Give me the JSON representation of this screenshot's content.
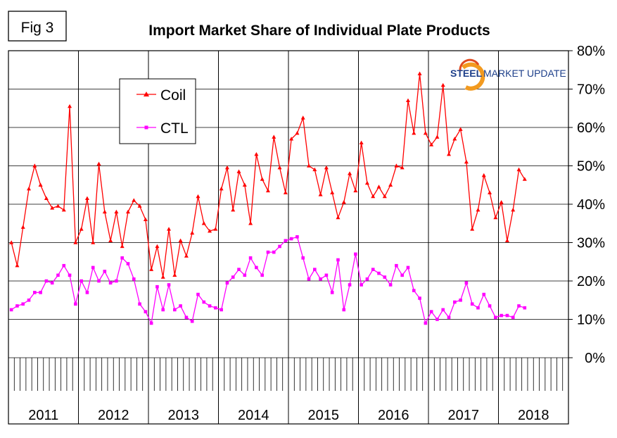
{
  "fig_label": "Fig 3",
  "logo": {
    "text_steel": "STEEL",
    "text_rest": "MARKET UPDATE"
  },
  "chart_data": {
    "type": "line",
    "title": "Import Market Share of Individual Plate Products",
    "xlabel": "",
    "ylabel": "",
    "ylim": [
      0,
      80
    ],
    "ytick_values": [
      0,
      10,
      20,
      30,
      40,
      50,
      60,
      70,
      80
    ],
    "ytick_labels": [
      "0%",
      "10%",
      "20%",
      "30%",
      "40%",
      "50%",
      "60%",
      "70%",
      "80%"
    ],
    "year_labels": [
      "2011",
      "2012",
      "2013",
      "2014",
      "2015",
      "2016",
      "2017",
      "2018"
    ],
    "months_per_year": 12,
    "grid": true,
    "legend_position": "top-left",
    "series": [
      {
        "name": "Coil",
        "color": "#ff0000",
        "marker": "triangle",
        "values": [
          30,
          24,
          34,
          44,
          50,
          45,
          41.5,
          39,
          39.5,
          38.5,
          65.5,
          30,
          33.5,
          41.5,
          30,
          50.5,
          38,
          30.5,
          38,
          29,
          38,
          41,
          39.5,
          36,
          23,
          29,
          21,
          33.5,
          21.5,
          30.5,
          26.5,
          32.5,
          42,
          35,
          33,
          33.5,
          44,
          49.5,
          38.5,
          48.5,
          45,
          35,
          53,
          46.5,
          43.5,
          57.5,
          49.5,
          43,
          57,
          58.5,
          62.5,
          50,
          49,
          42.5,
          49.5,
          43,
          36.5,
          40.5,
          48,
          43.5,
          56,
          45.5,
          42,
          44.5,
          42,
          45,
          50,
          49.5,
          67,
          58.5,
          74,
          58.5,
          55.5,
          57.5,
          71,
          53,
          57,
          59.5,
          51,
          33.5,
          38.5,
          47.5,
          43,
          36.5,
          40.5,
          30.5,
          38.5,
          49,
          46.5
        ]
      },
      {
        "name": "CTL",
        "color": "#ff00ff",
        "marker": "square",
        "values": [
          12.5,
          13.5,
          14,
          15,
          17,
          17,
          20,
          19.5,
          21.5,
          24,
          21.5,
          14,
          20,
          17,
          23.5,
          20,
          22.5,
          19.5,
          20,
          26,
          24.5,
          20.5,
          14,
          12,
          9,
          18.5,
          12.5,
          19,
          12.5,
          13.5,
          10.5,
          9.5,
          16.5,
          14.5,
          13.5,
          13,
          12.5,
          19.5,
          21,
          23,
          21.5,
          26,
          23.5,
          21.5,
          27.5,
          27.5,
          29,
          30.5,
          31,
          31.5,
          26,
          20.5,
          23,
          20.5,
          21.5,
          17,
          25.5,
          12.5,
          19,
          27,
          19,
          20.5,
          23,
          22,
          21,
          19,
          24,
          21.5,
          23.5,
          17.5,
          15.5,
          9,
          12,
          10,
          12.5,
          10.5,
          14.5,
          15,
          19.5,
          14,
          13,
          16.5,
          13.5,
          10.5,
          11,
          11,
          10.5,
          13.5,
          13
        ]
      }
    ]
  }
}
